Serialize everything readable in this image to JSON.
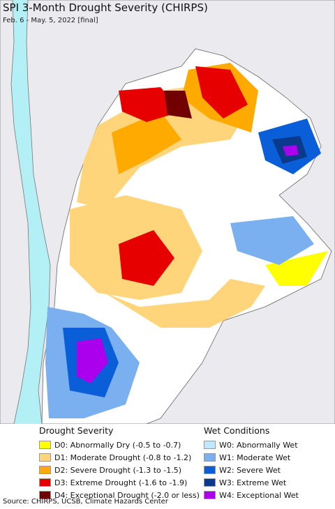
{
  "header": {
    "title": "SPI 3-Month Drought Severity (CHIRPS)",
    "subtitle": "Feb. 6 - May. 5, 2022 [final]"
  },
  "legend": {
    "drought": {
      "title": "Drought Severity",
      "items": [
        {
          "label": "D0: Abnormally Dry (-0.5 to -0.7)",
          "color": "#ffff00"
        },
        {
          "label": "D1: Moderate Drought (-0.8 to -1.2)",
          "color": "#fed57a"
        },
        {
          "label": "D2: Severe Drought (-1.3 to -1.5)",
          "color": "#ffaa00"
        },
        {
          "label": "D3: Extreme Drought (-1.6 to -1.9)",
          "color": "#e60000"
        },
        {
          "label": "D4: Exceptional Drought (-2.0 or less)",
          "color": "#730000"
        }
      ]
    },
    "wet": {
      "title": "Wet Conditions",
      "items": [
        {
          "label": "W0: Abnormally Wet",
          "color": "#bfe8ff"
        },
        {
          "label": "W1: Moderate Wet",
          "color": "#7bb0f0"
        },
        {
          "label": "W2: Severe Wet",
          "color": "#0a5ed8"
        },
        {
          "label": "W3: Extreme Wet",
          "color": "#0a3a8c"
        },
        {
          "label": "W4: Exceptional Wet",
          "color": "#aa00ee"
        }
      ]
    }
  },
  "footer": {
    "source": "Source: CHIRPS, UCSB, Climate Hazards Center"
  }
}
